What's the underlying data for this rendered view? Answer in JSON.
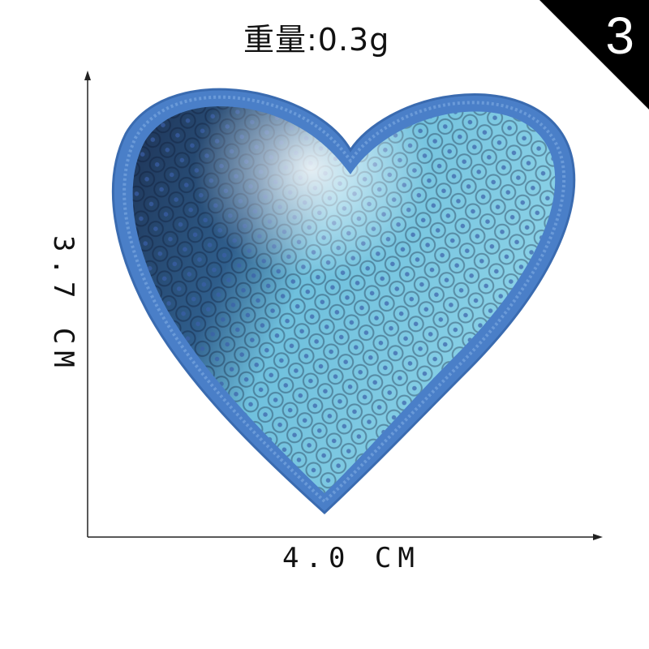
{
  "weight_label": "重量:0.3g",
  "badge": {
    "number": "3",
    "color": "#000000"
  },
  "dimensions": {
    "height": "3.7 CM",
    "width": "4.0 CM"
  },
  "colors": {
    "border": "#4a7fc8",
    "sequin_light": "#8fd4e8",
    "sequin_mid": "#4aa8d0",
    "sequin_dark": "#1a2a4a"
  },
  "image": {
    "subject": "heart-sequin-patch"
  }
}
